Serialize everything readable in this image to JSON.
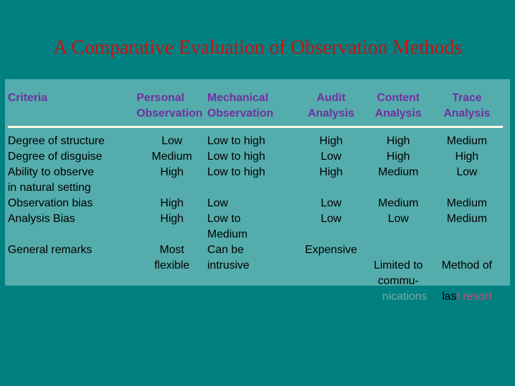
{
  "slide": {
    "title": "A Comparative Evaluation of Observation Methods",
    "colors": {
      "background": "#008080",
      "panel": "#55acac",
      "title_text": "#cc1111",
      "header_text": "#7030a0",
      "body_text": "#000000",
      "underline": "#fffde8",
      "faded_text": "#7aa9a7",
      "highlight_text": "#e0457b"
    }
  },
  "table": {
    "headers": [
      {
        "line1": "Criteria",
        "line2": ""
      },
      {
        "line1": "Personal",
        "line2": "Observation"
      },
      {
        "line1": "Mechanical",
        "line2": "Observation"
      },
      {
        "line1": "Audit",
        "line2": "Analysis"
      },
      {
        "line1": "Content",
        "line2": "Analysis"
      },
      {
        "line1": "Trace",
        "line2": "Analysis"
      }
    ],
    "rows": [
      {
        "criteria": "Degree of structure",
        "personal": "Low",
        "mechanical": "Low to high",
        "audit": "High",
        "content": "High",
        "trace": "Medium"
      },
      {
        "criteria": "Degree of disguise",
        "personal": "Medium",
        "mechanical": "Low to high",
        "audit": "Low",
        "content": "High",
        "trace": "High"
      },
      {
        "criteria": "Ability to observe\nin natural setting",
        "personal": "High",
        "mechanical": "Low to high",
        "audit": "High",
        "content": "Medium",
        "trace": "Low"
      },
      {
        "criteria": "Observation bias",
        "personal": "High",
        "mechanical": "Low",
        "audit": "Low",
        "content": "Medium",
        "trace": "Medium"
      },
      {
        "criteria": "Analysis Bias",
        "personal": "High",
        "mechanical": "Low to\nMedium",
        "audit": "Low",
        "content": "Low",
        "trace": "Medium"
      },
      {
        "criteria": "General remarks",
        "personal": "Most\nflexible",
        "mechanical": "Can be\nintrusive",
        "audit": "Expensive",
        "content": "Limited to\ncommu-",
        "trace_line1": "Method of",
        "trace_las": "las",
        "trace_resort": "t resort"
      }
    ],
    "faded_text": "nications"
  }
}
